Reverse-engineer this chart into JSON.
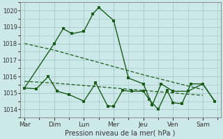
{
  "xlabel": "Pression niveau de la mer( hPa )",
  "bg_color": "#cce8e8",
  "grid_color": "#aacccc",
  "line_color": "#1a5c1a",
  "ylim": [
    1013.5,
    1020.5
  ],
  "yticks": [
    1014,
    1015,
    1016,
    1017,
    1018,
    1019,
    1020
  ],
  "x_labels": [
    "Mar",
    "Dim",
    "Lun",
    "Mer",
    "Jeu",
    "Ven",
    "Sam"
  ],
  "x_tick_pos": [
    0,
    1,
    2,
    3,
    4,
    5,
    6
  ],
  "xlim": [
    -0.15,
    6.6
  ],
  "s0x": [
    0,
    1,
    1.3,
    1.6,
    2.0,
    2.3,
    2.5,
    3.0,
    3.5,
    4.0,
    4.3,
    4.6,
    5.0,
    5.5,
    6.0,
    6.4
  ],
  "s0y": [
    1015.3,
    1018.0,
    1018.9,
    1018.6,
    1018.75,
    1019.8,
    1020.2,
    1019.4,
    1015.9,
    1015.55,
    1014.25,
    1015.55,
    1015.1,
    1015.1,
    1015.55,
    1014.5
  ],
  "s1x": [
    0,
    1,
    2,
    3,
    4,
    5,
    6
  ],
  "s1y": [
    1018.0,
    1017.6,
    1017.1,
    1016.6,
    1016.1,
    1015.65,
    1015.2
  ],
  "s2x": [
    0,
    1,
    2,
    3,
    4,
    5,
    6
  ],
  "s2y": [
    1015.7,
    1015.6,
    1015.45,
    1015.3,
    1015.15,
    1015.0,
    1014.85
  ],
  "s3x": [
    0,
    0.4,
    0.8,
    1.1,
    1.5,
    2.0,
    2.4,
    2.8,
    3.0,
    3.3,
    3.6,
    4.0,
    4.2,
    4.5,
    4.8,
    5.0,
    5.3,
    5.6,
    6.0,
    6.4
  ],
  "s3y": [
    1015.3,
    1015.25,
    1016.0,
    1015.1,
    1014.9,
    1014.5,
    1015.6,
    1014.2,
    1014.2,
    1015.15,
    1015.1,
    1015.1,
    1014.6,
    1014.0,
    1015.15,
    1014.4,
    1014.35,
    1015.55,
    1015.55,
    1014.5
  ]
}
